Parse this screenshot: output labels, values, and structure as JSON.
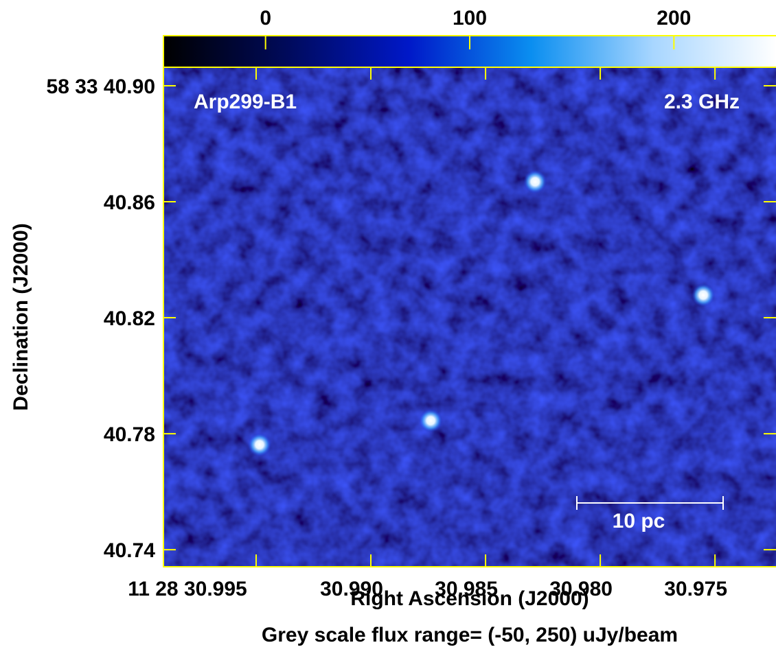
{
  "chart_data": {
    "type": "image",
    "xlabel": "Right Ascension (J2000)",
    "ylabel": "Declination (J2000)",
    "footer": "Grey scale flux range= (-50, 250) uJy/beam",
    "annotations": [
      "Arp299-B1",
      "2.3 GHz"
    ],
    "scale_bar_label": "10 pc",
    "xlim": [
      30.99904,
      30.97234
    ],
    "xticks": [
      {
        "value": 30.995,
        "label": "11 28 30.995"
      },
      {
        "value": 30.99,
        "label": "30.990"
      },
      30.985,
      {
        "value": 30.98,
        "label": "30.980"
      },
      30.975
    ],
    "ylim": [
      40.7341,
      40.9064
    ],
    "yticks": [
      {
        "value": 40.9,
        "label": "58 33 40.90"
      },
      40.86,
      40.82,
      40.78,
      40.74
    ],
    "clim": [
      -50,
      250
    ],
    "cticks": [
      0,
      100,
      200
    ],
    "sources": {
      "x": [
        30.99485,
        30.98739,
        30.98284,
        30.97551
      ],
      "y": [
        40.7762,
        40.7845,
        40.8669,
        40.8278
      ]
    }
  }
}
